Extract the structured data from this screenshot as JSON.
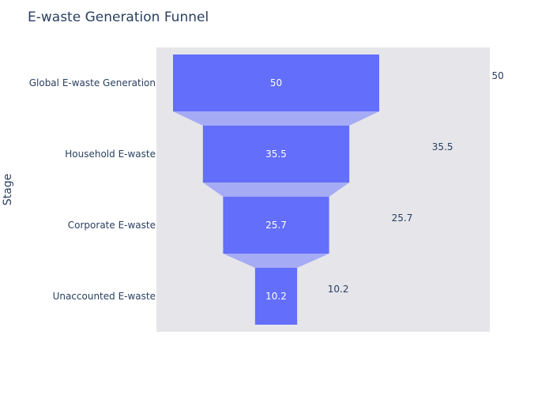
{
  "chart_data": {
    "type": "funnel",
    "title": "E-waste Generation Funnel",
    "ylabel": "Stage",
    "xlabel": "",
    "categories": [
      "Global E-waste Generation",
      "Household E-waste",
      "Corporate E-waste",
      "Unaccounted E-waste"
    ],
    "values": [
      50,
      35.5,
      25.7,
      10.2
    ],
    "value_labels": [
      "50",
      "35.5",
      "25.7",
      "10.2"
    ],
    "grid": false,
    "legend": "none",
    "colors": {
      "bar": "#636efa",
      "connector": "#a5abf5",
      "plot_bg": "#e5e5ea",
      "text": "#2a3f5f"
    }
  }
}
